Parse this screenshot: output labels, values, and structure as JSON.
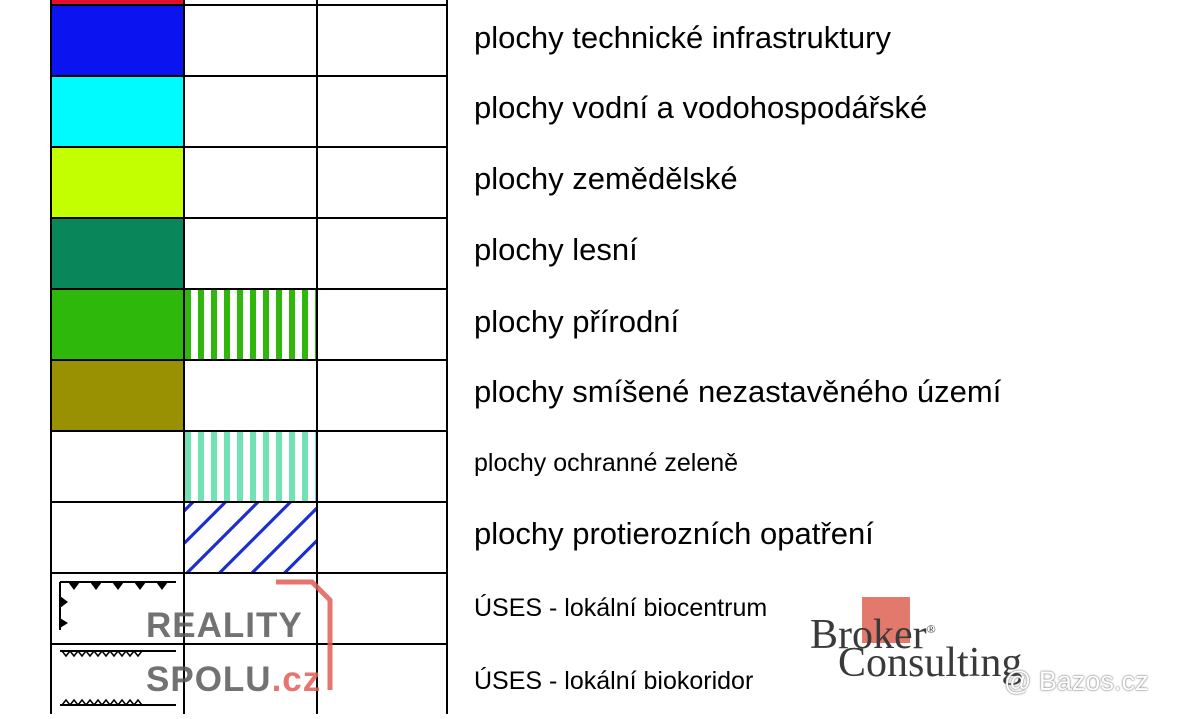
{
  "legend": {
    "rows": [
      {
        "label": "plochy technické infrastruktury",
        "color": "#0b14f0",
        "pattern": "none"
      },
      {
        "label": "plochy vodní a vodohospodářské",
        "color": "#00fbff",
        "pattern": "none"
      },
      {
        "label": "plochy zemědělské",
        "color": "#c4ff00",
        "pattern": "none"
      },
      {
        "label": "plochy lesní",
        "color": "#09865a",
        "pattern": "none"
      },
      {
        "label": "plochy přírodní",
        "color": "#2eb80c",
        "pattern": "green-vertical-stripes"
      },
      {
        "label": "plochy smíšené nezastavěného území",
        "color": "#9a9102",
        "pattern": "none"
      },
      {
        "label": "plochy ochranné zeleně",
        "color": "#ffffff",
        "pattern": "mint-vertical-stripes"
      },
      {
        "label": "plochy protierozních opatření",
        "color": "#ffffff",
        "pattern": "blue-diagonal-hatch"
      },
      {
        "label": "ÚSES - lokální biocentrum",
        "color": "#ffffff",
        "pattern": "biocentrum-symbol"
      },
      {
        "label": "ÚSES - lokální biokoridor",
        "color": "#ffffff",
        "pattern": "biokoridor-symbol"
      }
    ]
  },
  "watermarks": {
    "reality_line1": "REALITY",
    "reality_line2": "SPOLU",
    "reality_tld": ".cz",
    "broker_line1": "Broker",
    "broker_line2": "Consulting",
    "broker_registered": "®",
    "bazos": "@ Bazos.cz"
  }
}
